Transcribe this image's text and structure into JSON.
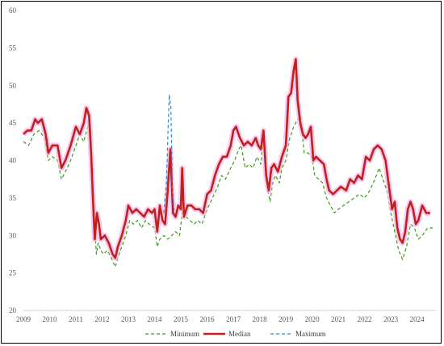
{
  "chart_data": {
    "type": "line",
    "title": "",
    "xlabel": "",
    "ylabel": "",
    "xlim": [
      2009,
      2024.75
    ],
    "ylim": [
      20,
      60
    ],
    "x_ticks": [
      "2009",
      "2010",
      "2011",
      "2012",
      "2013",
      "2014",
      "2015",
      "2016",
      "2017",
      "2018",
      "2019",
      "2020",
      "2021",
      "2022",
      "2023",
      "2024"
    ],
    "y_ticks": [
      "20",
      "25",
      "30",
      "35",
      "40",
      "45",
      "50",
      "55",
      "60"
    ],
    "grid": false,
    "legend": "bottom",
    "series": [
      {
        "name": "Minimum",
        "color": "#3a9a1a",
        "dash": "dashed",
        "points": [
          [
            2009.0,
            42.5
          ],
          [
            2009.2,
            42.0
          ],
          [
            2009.4,
            43.5
          ],
          [
            2009.6,
            44.0
          ],
          [
            2009.8,
            43.0
          ],
          [
            2009.95,
            40.0
          ],
          [
            2010.1,
            40.5
          ],
          [
            2010.3,
            40.0
          ],
          [
            2010.45,
            37.5
          ],
          [
            2010.6,
            38.5
          ],
          [
            2010.8,
            40.0
          ],
          [
            2011.0,
            42.0
          ],
          [
            2011.15,
            43.5
          ],
          [
            2011.3,
            42.5
          ],
          [
            2011.45,
            44.5
          ],
          [
            2011.55,
            45.0
          ],
          [
            2011.62,
            38.0
          ],
          [
            2011.7,
            32.0
          ],
          [
            2011.78,
            27.5
          ],
          [
            2011.85,
            29.0
          ],
          [
            2011.95,
            28.0
          ],
          [
            2012.05,
            27.5
          ],
          [
            2012.2,
            28.0
          ],
          [
            2012.35,
            27.0
          ],
          [
            2012.5,
            25.8
          ],
          [
            2012.6,
            27.0
          ],
          [
            2012.75,
            28.5
          ],
          [
            2012.9,
            30.0
          ],
          [
            2013.05,
            32.0
          ],
          [
            2013.2,
            31.5
          ],
          [
            2013.35,
            32.0
          ],
          [
            2013.5,
            31.0
          ],
          [
            2013.65,
            32.0
          ],
          [
            2013.8,
            31.5
          ],
          [
            2014.0,
            31.0
          ],
          [
            2014.1,
            28.5
          ],
          [
            2014.2,
            29.5
          ],
          [
            2014.35,
            30.0
          ],
          [
            2014.5,
            29.5
          ],
          [
            2014.65,
            30.0
          ],
          [
            2014.8,
            30.5
          ],
          [
            2014.95,
            30.0
          ],
          [
            2015.05,
            33.0
          ],
          [
            2015.2,
            32.5
          ],
          [
            2015.35,
            32.0
          ],
          [
            2015.5,
            31.5
          ],
          [
            2015.65,
            32.0
          ],
          [
            2015.8,
            31.5
          ],
          [
            2016.0,
            33.5
          ],
          [
            2016.2,
            35.0
          ],
          [
            2016.4,
            36.5
          ],
          [
            2016.55,
            38.0
          ],
          [
            2016.7,
            37.5
          ],
          [
            2016.9,
            39.0
          ],
          [
            2017.05,
            40.0
          ],
          [
            2017.2,
            41.5
          ],
          [
            2017.3,
            42.0
          ],
          [
            2017.45,
            39.0
          ],
          [
            2017.6,
            39.5
          ],
          [
            2017.75,
            39.0
          ],
          [
            2017.9,
            40.5
          ],
          [
            2018.05,
            39.5
          ],
          [
            2018.15,
            44.0
          ],
          [
            2018.25,
            37.0
          ],
          [
            2018.4,
            34.5
          ],
          [
            2018.5,
            37.0
          ],
          [
            2018.6,
            38.0
          ],
          [
            2018.75,
            37.0
          ],
          [
            2018.85,
            39.0
          ],
          [
            2019.0,
            40.0
          ],
          [
            2019.15,
            43.0
          ],
          [
            2019.3,
            44.5
          ],
          [
            2019.45,
            45.5
          ],
          [
            2019.55,
            46.0
          ],
          [
            2019.7,
            41.0
          ],
          [
            2019.85,
            41.0
          ],
          [
            2020.0,
            40.5
          ],
          [
            2020.1,
            38.0
          ],
          [
            2020.25,
            37.5
          ],
          [
            2020.4,
            37.0
          ],
          [
            2020.55,
            35.0
          ],
          [
            2020.7,
            34.0
          ],
          [
            2020.85,
            33.0
          ],
          [
            2021.0,
            33.5
          ],
          [
            2021.2,
            34.0
          ],
          [
            2021.4,
            34.5
          ],
          [
            2021.6,
            35.0
          ],
          [
            2021.8,
            35.5
          ],
          [
            2022.0,
            35.0
          ],
          [
            2022.2,
            36.0
          ],
          [
            2022.4,
            37.5
          ],
          [
            2022.55,
            39.0
          ],
          [
            2022.7,
            37.5
          ],
          [
            2022.85,
            36.0
          ],
          [
            2023.0,
            33.0
          ],
          [
            2023.15,
            30.5
          ],
          [
            2023.3,
            28.0
          ],
          [
            2023.45,
            26.8
          ],
          [
            2023.6,
            28.5
          ],
          [
            2023.75,
            31.5
          ],
          [
            2023.9,
            31.0
          ],
          [
            2024.05,
            29.5
          ],
          [
            2024.2,
            30.0
          ],
          [
            2024.4,
            31.0
          ],
          [
            2024.6,
            31.0
          ]
        ]
      },
      {
        "name": "Median",
        "color": "#c0211a",
        "dash": "solid",
        "points": [
          [
            2009.0,
            43.5
          ],
          [
            2009.15,
            44.0
          ],
          [
            2009.3,
            44.0
          ],
          [
            2009.45,
            45.5
          ],
          [
            2009.55,
            45.0
          ],
          [
            2009.7,
            45.5
          ],
          [
            2009.85,
            43.5
          ],
          [
            2009.95,
            41.0
          ],
          [
            2010.1,
            42.0
          ],
          [
            2010.3,
            42.0
          ],
          [
            2010.45,
            39.0
          ],
          [
            2010.6,
            40.0
          ],
          [
            2010.8,
            42.0
          ],
          [
            2011.0,
            44.5
          ],
          [
            2011.15,
            43.5
          ],
          [
            2011.3,
            45.0
          ],
          [
            2011.4,
            47.0
          ],
          [
            2011.5,
            46.0
          ],
          [
            2011.58,
            41.0
          ],
          [
            2011.65,
            35.0
          ],
          [
            2011.72,
            29.5
          ],
          [
            2011.8,
            33.0
          ],
          [
            2011.88,
            31.5
          ],
          [
            2011.95,
            29.5
          ],
          [
            2012.1,
            30.0
          ],
          [
            2012.25,
            29.0
          ],
          [
            2012.4,
            27.5
          ],
          [
            2012.5,
            27.0
          ],
          [
            2012.6,
            28.5
          ],
          [
            2012.75,
            30.0
          ],
          [
            2012.9,
            32.0
          ],
          [
            2013.0,
            34.0
          ],
          [
            2013.15,
            33.0
          ],
          [
            2013.3,
            33.5
          ],
          [
            2013.45,
            33.0
          ],
          [
            2013.6,
            32.5
          ],
          [
            2013.75,
            33.5
          ],
          [
            2013.9,
            33.0
          ],
          [
            2014.0,
            33.5
          ],
          [
            2014.1,
            30.5
          ],
          [
            2014.2,
            34.0
          ],
          [
            2014.3,
            32.0
          ],
          [
            2014.4,
            31.5
          ],
          [
            2014.5,
            36.0
          ],
          [
            2014.6,
            41.5
          ],
          [
            2014.7,
            33.0
          ],
          [
            2014.8,
            32.5
          ],
          [
            2014.9,
            34.0
          ],
          [
            2015.0,
            33.5
          ],
          [
            2015.05,
            39.0
          ],
          [
            2015.12,
            32.5
          ],
          [
            2015.25,
            34.0
          ],
          [
            2015.4,
            34.0
          ],
          [
            2015.55,
            33.5
          ],
          [
            2015.7,
            33.5
          ],
          [
            2015.85,
            33.0
          ],
          [
            2016.0,
            35.5
          ],
          [
            2016.15,
            36.0
          ],
          [
            2016.3,
            38.0
          ],
          [
            2016.45,
            39.5
          ],
          [
            2016.6,
            40.5
          ],
          [
            2016.75,
            40.5
          ],
          [
            2016.9,
            42.0
          ],
          [
            2017.0,
            44.0
          ],
          [
            2017.1,
            44.5
          ],
          [
            2017.25,
            43.0
          ],
          [
            2017.4,
            42.0
          ],
          [
            2017.55,
            42.5
          ],
          [
            2017.7,
            42.0
          ],
          [
            2017.85,
            43.0
          ],
          [
            2017.95,
            42.0
          ],
          [
            2018.05,
            41.5
          ],
          [
            2018.15,
            44.0
          ],
          [
            2018.25,
            38.0
          ],
          [
            2018.35,
            36.0
          ],
          [
            2018.45,
            39.0
          ],
          [
            2018.55,
            39.5
          ],
          [
            2018.7,
            38.5
          ],
          [
            2018.85,
            40.5
          ],
          [
            2019.0,
            42.0
          ],
          [
            2019.1,
            48.5
          ],
          [
            2019.2,
            49.0
          ],
          [
            2019.3,
            52.0
          ],
          [
            2019.38,
            53.5
          ],
          [
            2019.45,
            48.0
          ],
          [
            2019.55,
            45.0
          ],
          [
            2019.65,
            43.5
          ],
          [
            2019.75,
            43.0
          ],
          [
            2019.85,
            43.5
          ],
          [
            2019.95,
            44.5
          ],
          [
            2020.05,
            40.0
          ],
          [
            2020.15,
            40.5
          ],
          [
            2020.3,
            40.0
          ],
          [
            2020.45,
            39.5
          ],
          [
            2020.55,
            37.5
          ],
          [
            2020.65,
            36.0
          ],
          [
            2020.8,
            35.5
          ],
          [
            2020.95,
            36.0
          ],
          [
            2021.1,
            36.5
          ],
          [
            2021.3,
            36.0
          ],
          [
            2021.45,
            37.5
          ],
          [
            2021.6,
            37.0
          ],
          [
            2021.75,
            38.0
          ],
          [
            2021.9,
            37.5
          ],
          [
            2022.05,
            40.5
          ],
          [
            2022.2,
            40.0
          ],
          [
            2022.35,
            41.5
          ],
          [
            2022.5,
            42.0
          ],
          [
            2022.65,
            41.5
          ],
          [
            2022.8,
            40.0
          ],
          [
            2022.95,
            36.0
          ],
          [
            2023.05,
            33.5
          ],
          [
            2023.15,
            34.5
          ],
          [
            2023.25,
            31.0
          ],
          [
            2023.35,
            29.5
          ],
          [
            2023.45,
            29.0
          ],
          [
            2023.55,
            30.5
          ],
          [
            2023.65,
            33.5
          ],
          [
            2023.75,
            34.5
          ],
          [
            2023.85,
            33.5
          ],
          [
            2023.95,
            31.5
          ],
          [
            2024.05,
            32.0
          ],
          [
            2024.2,
            34.0
          ],
          [
            2024.35,
            33.0
          ],
          [
            2024.5,
            33.0
          ]
        ]
      },
      {
        "name": "Maximum",
        "color": "#2e8bd6",
        "dash": "dashed",
        "points": [
          [
            2014.35,
            33.0
          ],
          [
            2014.45,
            37.0
          ],
          [
            2014.52,
            45.0
          ],
          [
            2014.56,
            48.8
          ],
          [
            2014.62,
            47.0
          ],
          [
            2014.68,
            36.0
          ],
          [
            2014.75,
            33.0
          ]
        ]
      }
    ]
  }
}
